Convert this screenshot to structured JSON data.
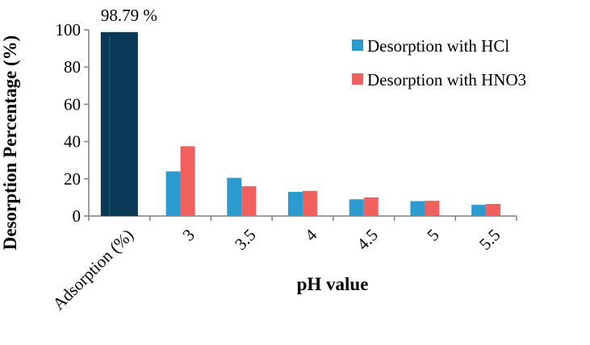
{
  "chart_data": {
    "type": "bar",
    "title": "",
    "xlabel": "pH value",
    "ylabel": "Desorption Percentage (%)",
    "ylim": [
      0,
      100
    ],
    "yticks": [
      "0",
      "20",
      "40",
      "60",
      "80",
      "100"
    ],
    "categories": [
      "Adsorption (%)",
      "3",
      "3.5",
      "4",
      "4.5",
      "5",
      "5.5"
    ],
    "adsorption": {
      "category": "Adsorption (%)",
      "value": 98.79,
      "label": "98.79 %",
      "color": "#0b3a57"
    },
    "series": [
      {
        "name": "Desorption with HCl",
        "color": "#2b9bd0",
        "values": [
          null,
          24,
          20.5,
          13,
          9,
          8,
          6
        ]
      },
      {
        "name": "Desorption with HNO3",
        "color": "#f0605c",
        "values": [
          null,
          37.5,
          16,
          13.5,
          10,
          8.2,
          6.5
        ]
      }
    ],
    "legend_position": "top-right",
    "grid": false
  }
}
